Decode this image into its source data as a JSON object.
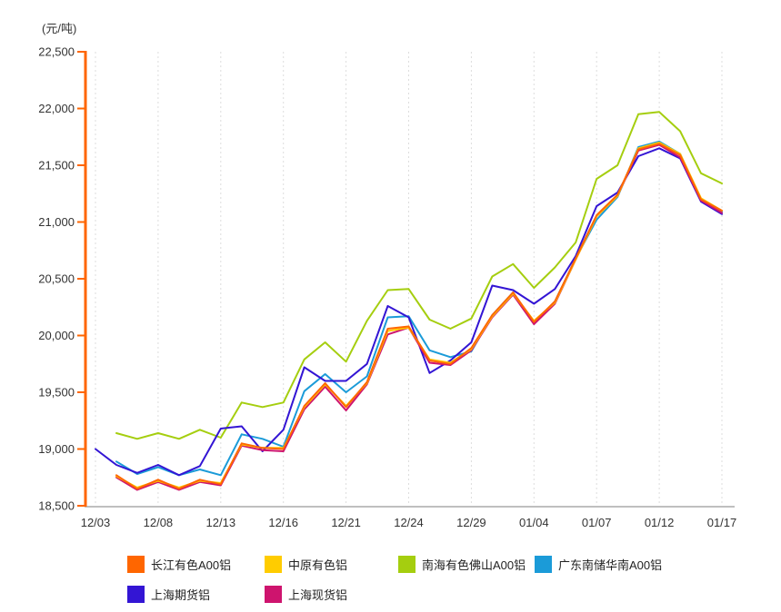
{
  "chart_data": {
    "type": "line",
    "title": "",
    "ylabel": "(元/吨)",
    "xlabel": "",
    "ylim": [
      18500,
      22500
    ],
    "y_tick_step": 500,
    "y_tick_labels": [
      "22,500",
      "22,000",
      "21,500",
      "21,000",
      "20,500",
      "20,000",
      "19,500",
      "19,000",
      "18,500"
    ],
    "x_tick_labels": [
      "12/03",
      "12/08",
      "12/13",
      "12/16",
      "12/21",
      "12/24",
      "12/29",
      "01/04",
      "01/07",
      "01/12",
      "01/17"
    ],
    "points_per_label_interval": 3,
    "n_points": 31,
    "grid": "vertical-dashed-only",
    "legend_position": "bottom",
    "axis_colors": {
      "y_axis": "#FF6600",
      "x_axis": "#AAAAAA",
      "gridline": "#DDDDDD",
      "tick_text": "#333333"
    },
    "series": [
      {
        "name": "长江有色A00铝",
        "color": "#FF6600",
        "values": [
          null,
          18770,
          18650,
          18730,
          18650,
          18730,
          18690,
          19050,
          19010,
          19000,
          19380,
          19580,
          19370,
          19590,
          20060,
          20080,
          19780,
          19750,
          19890,
          20180,
          20380,
          20120,
          20300,
          20680,
          21060,
          21240,
          21640,
          21690,
          21590,
          21200,
          21100
        ]
      },
      {
        "name": "中原有色铝",
        "color": "#FFCC00",
        "values": [
          null,
          18760,
          18660,
          18720,
          18660,
          18720,
          18700,
          19040,
          19010,
          19010,
          19370,
          19570,
          19380,
          19580,
          20040,
          20070,
          19790,
          19760,
          19880,
          20170,
          20370,
          20130,
          20290,
          20670,
          21050,
          21230,
          21650,
          21700,
          21600,
          21210,
          21100
        ]
      },
      {
        "name": "南海有色佛山A00铝",
        "color": "#A5CE0F",
        "values": [
          null,
          19140,
          19090,
          19140,
          19090,
          19170,
          19100,
          19410,
          19370,
          19410,
          19790,
          19940,
          19770,
          20130,
          20400,
          20410,
          20140,
          20060,
          20150,
          20520,
          20630,
          20420,
          20600,
          20820,
          21380,
          21500,
          21950,
          21970,
          21800,
          21430,
          21340
        ]
      },
      {
        "name": "广东南储华南A00铝",
        "color": "#1B9BD8",
        "values": [
          null,
          18890,
          18780,
          18840,
          18770,
          18820,
          18770,
          19130,
          19090,
          19020,
          19510,
          19660,
          19500,
          19640,
          20160,
          20170,
          19870,
          19810,
          19860,
          20180,
          20380,
          20110,
          20300,
          20680,
          21020,
          21220,
          21660,
          21710,
          21600,
          21200,
          21090
        ]
      },
      {
        "name": "上海期货铝",
        "color": "#3315D4",
        "values": [
          19000,
          18860,
          18790,
          18860,
          18770,
          18850,
          19180,
          19200,
          18980,
          19170,
          19720,
          19600,
          19600,
          19750,
          20260,
          20160,
          19670,
          19780,
          19940,
          20440,
          20400,
          20280,
          20410,
          20700,
          21140,
          21260,
          21580,
          21650,
          21560,
          21180,
          21070
        ]
      },
      {
        "name": "上海现货铝",
        "color": "#CE146E",
        "values": [
          null,
          18750,
          18640,
          18710,
          18640,
          18710,
          18680,
          19030,
          18990,
          18980,
          19350,
          19550,
          19340,
          19570,
          20010,
          20070,
          19760,
          19740,
          19870,
          20160,
          20360,
          20100,
          20280,
          20670,
          21050,
          21230,
          21630,
          21680,
          21570,
          21190,
          21080
        ]
      }
    ],
    "legend_rows": [
      [
        0,
        1,
        2,
        3
      ],
      [
        4,
        5
      ]
    ]
  }
}
